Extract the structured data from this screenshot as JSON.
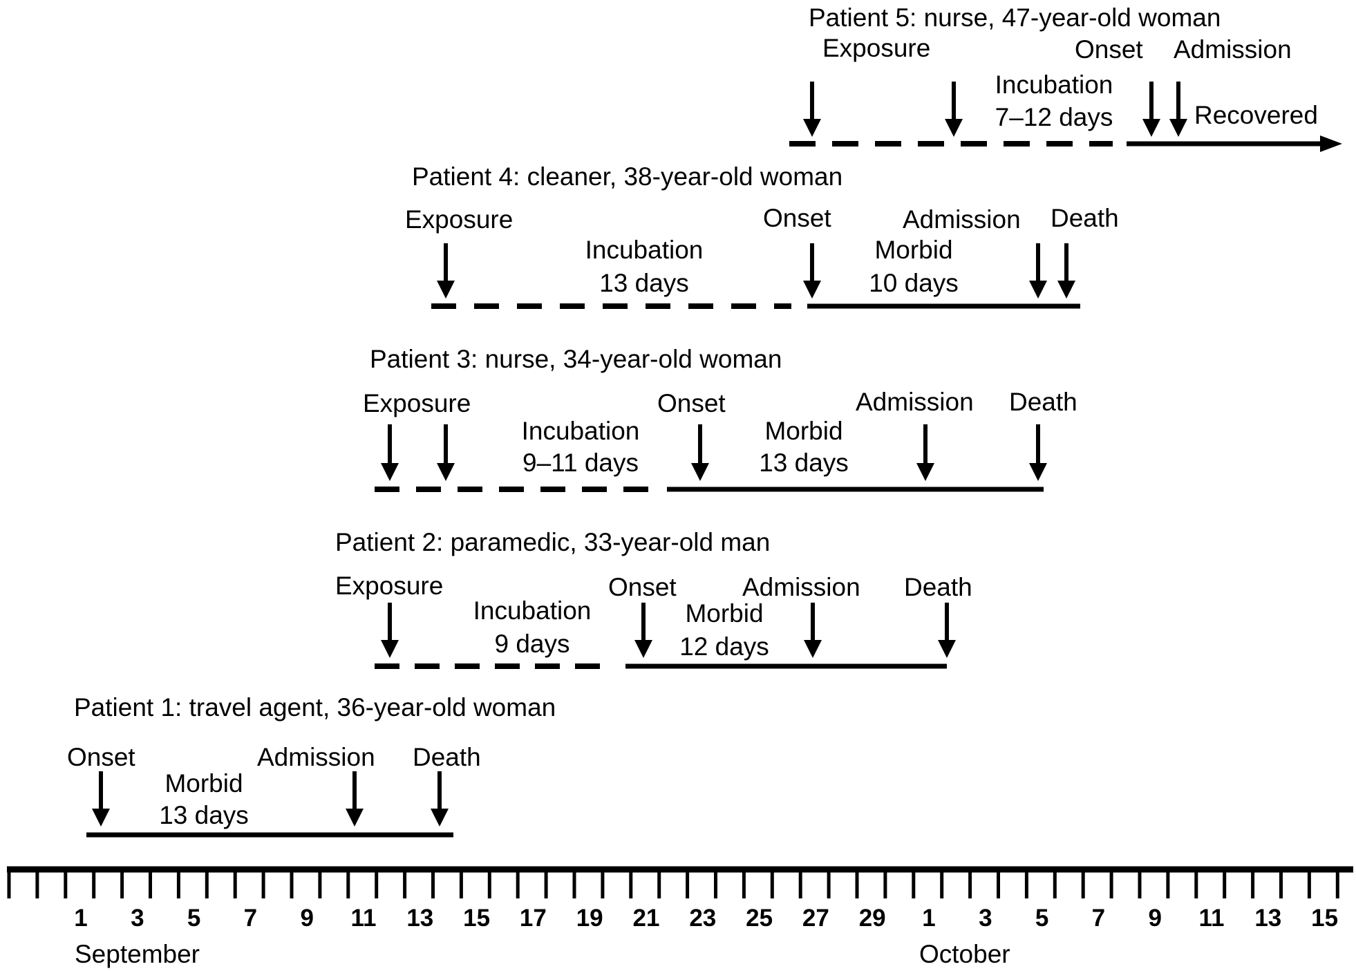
{
  "timeline": {
    "months": [
      "September",
      "October"
    ],
    "tick_labels": [
      "1",
      "3",
      "5",
      "7",
      "9",
      "11",
      "13",
      "15",
      "17",
      "19",
      "21",
      "23",
      "25",
      "27",
      "29",
      "1",
      "3",
      "5",
      "7",
      "9",
      "11",
      "13",
      "15"
    ]
  },
  "patients": [
    {
      "title": "Patient 1: travel agent, 36-year-old woman",
      "labels": {
        "onset": "Onset",
        "morbid": "Morbid",
        "morbid_days": "13 days",
        "admission": "Admission",
        "death": "Death"
      }
    },
    {
      "title": "Patient 2: paramedic, 33-year-old man",
      "labels": {
        "exposure": "Exposure",
        "incubation": "Incubation",
        "incubation_days": "9 days",
        "onset": "Onset",
        "morbid": "Morbid",
        "morbid_days": "12 days",
        "admission": "Admission",
        "death": "Death"
      }
    },
    {
      "title": "Patient 3: nurse, 34-year-old woman",
      "labels": {
        "exposure": "Exposure",
        "incubation": "Incubation",
        "incubation_days": "9–11 days",
        "onset": "Onset",
        "morbid": "Morbid",
        "morbid_days": "13 days",
        "admission": "Admission",
        "death": "Death"
      }
    },
    {
      "title": "Patient 4: cleaner, 38-year-old woman",
      "labels": {
        "exposure": "Exposure",
        "incubation": "Incubation",
        "incubation_days": "13 days",
        "onset": "Onset",
        "morbid": "Morbid",
        "morbid_days": "10 days",
        "admission": "Admission",
        "death": "Death"
      }
    },
    {
      "title": "Patient 5: nurse, 47-year-old woman",
      "labels": {
        "exposure": "Exposure",
        "incubation": "Incubation",
        "incubation_days": "7–12 days",
        "onset": "Onset",
        "admission": "Admission",
        "recovered": "Recovered"
      }
    }
  ]
}
